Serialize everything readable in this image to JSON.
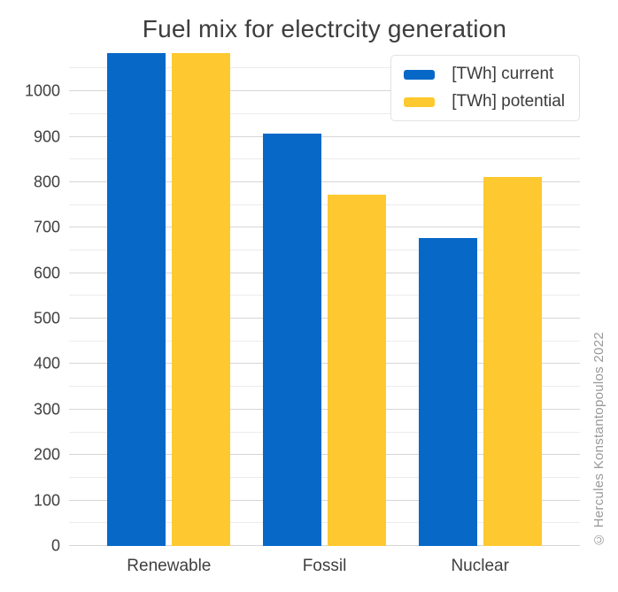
{
  "title": "Fuel mix for electrcity generation",
  "watermark": "© Hercules Konstantopoulos 2022",
  "colors": {
    "series_current": "#0768C8",
    "series_potential": "#FEC930",
    "grid_major": "#d6d6d6",
    "grid_minor": "#ececec",
    "title_text": "#3d3d3d",
    "axis_text": "#404040",
    "legend_text": "#3b3b3b",
    "legend_border": "#e2e2e2",
    "watermark_text": "#999999",
    "background": "#ffffff"
  },
  "legend": {
    "items": [
      {
        "label": "[TWh] current",
        "series": "current"
      },
      {
        "label": "[TWh] potential",
        "series": "potential"
      }
    ]
  },
  "x_axis": {
    "categories": [
      "Renewable",
      "Fossil",
      "Nuclear"
    ]
  },
  "y_axis": {
    "ticks": [
      0,
      100,
      200,
      300,
      400,
      500,
      600,
      700,
      800,
      900,
      1000
    ]
  },
  "chart_data": {
    "type": "bar",
    "title": "Fuel mix for electrcity generation",
    "categories": [
      "Renewable",
      "Fossil",
      "Nuclear"
    ],
    "series": [
      {
        "name": "[TWh] current",
        "key": "current",
        "color": "#0768C8",
        "values": [
          1084,
          907,
          677
        ]
      },
      {
        "name": "[TWh] potential",
        "key": "potential",
        "color": "#FEC930",
        "values": [
          1084,
          772,
          812
        ]
      }
    ],
    "xlabel": "",
    "ylabel": "",
    "unit": "TWh",
    "ylim": [
      0,
      1084
    ],
    "yticks": [
      0,
      100,
      200,
      300,
      400,
      500,
      600,
      700,
      800,
      900,
      1000
    ],
    "minor_grid_step": 50,
    "grid": true,
    "legend_position": "top-right"
  }
}
